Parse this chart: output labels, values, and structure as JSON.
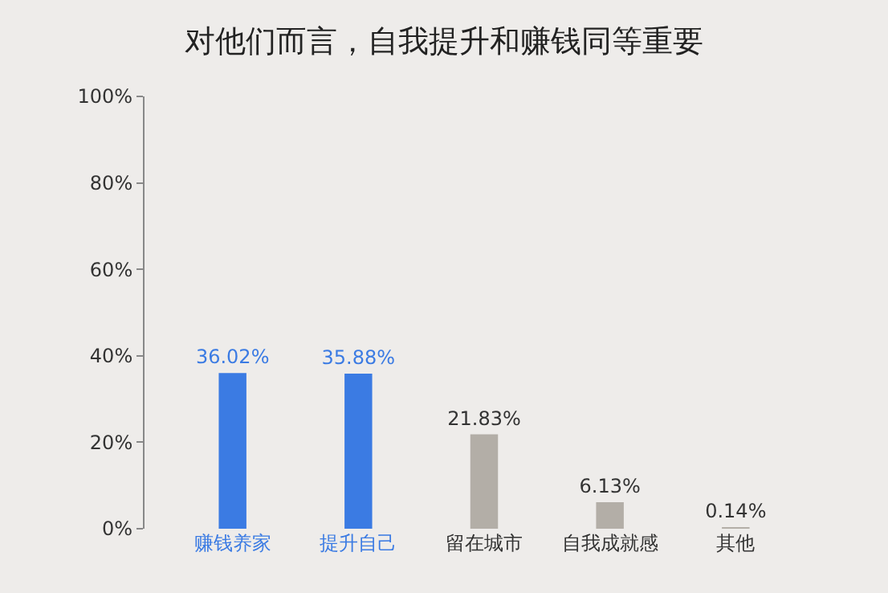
{
  "chart_data": {
    "type": "bar",
    "title": "对他们而言，自我提升和赚钱同等重要",
    "categories": [
      "赚钱养家",
      "提升自己",
      "留在城市",
      "自我成就感",
      "其他"
    ],
    "values": [
      36.02,
      35.88,
      21.83,
      6.13,
      0.14
    ],
    "colors": [
      "#3b7be3",
      "#3b7be3",
      "#b3aea7",
      "#b3aea7",
      "#b3aea7"
    ],
    "value_labels": [
      "36.02%",
      "35.88%",
      "21.83%",
      "6.13%",
      "0.14%"
    ],
    "ylim": [
      0,
      100
    ],
    "yticks": [
      {
        "value": 0,
        "label": "0%"
      },
      {
        "value": 20,
        "label": "20%"
      },
      {
        "value": 40,
        "label": "40%"
      },
      {
        "value": 60,
        "label": "60%"
      },
      {
        "value": 80,
        "label": "80%"
      },
      {
        "value": 100,
        "label": "100%"
      }
    ],
    "grid": false
  }
}
